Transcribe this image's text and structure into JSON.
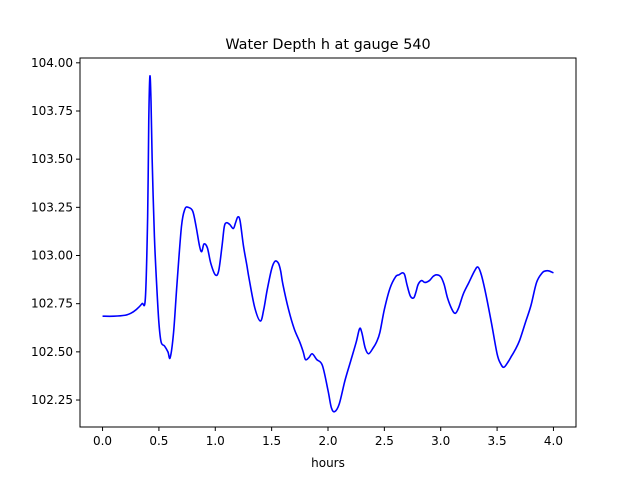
{
  "chart_data": {
    "type": "line",
    "title": "Water Depth h at gauge 540",
    "xlabel": "hours",
    "ylabel": "",
    "xlim": [
      -0.2,
      4.2
    ],
    "ylim": [
      102.11,
      104.025
    ],
    "xticks": [
      0.0,
      0.5,
      1.0,
      1.5,
      2.0,
      2.5,
      3.0,
      3.5,
      4.0
    ],
    "xtick_labels": [
      "0.0",
      "0.5",
      "1.0",
      "1.5",
      "2.0",
      "2.5",
      "3.0",
      "3.5",
      "4.0"
    ],
    "yticks": [
      102.25,
      102.5,
      102.75,
      103.0,
      103.25,
      103.5,
      103.75,
      104.0
    ],
    "ytick_labels": [
      "102.25",
      "102.50",
      "102.75",
      "103.00",
      "103.25",
      "103.50",
      "103.75",
      "104.00"
    ],
    "grid": false,
    "series": [
      {
        "color": "#0000ff",
        "x": [
          0.0,
          0.1,
          0.2,
          0.25,
          0.3,
          0.35,
          0.38,
          0.4,
          0.41,
          0.42,
          0.43,
          0.44,
          0.46,
          0.48,
          0.5,
          0.52,
          0.55,
          0.58,
          0.6,
          0.63,
          0.66,
          0.7,
          0.73,
          0.76,
          0.8,
          0.83,
          0.86,
          0.88,
          0.9,
          0.93,
          0.96,
          1.0,
          1.03,
          1.06,
          1.08,
          1.1,
          1.13,
          1.16,
          1.18,
          1.2,
          1.22,
          1.25,
          1.28,
          1.3,
          1.35,
          1.4,
          1.43,
          1.46,
          1.5,
          1.53,
          1.56,
          1.58,
          1.6,
          1.65,
          1.7,
          1.75,
          1.78,
          1.8,
          1.83,
          1.86,
          1.9,
          1.95,
          2.0,
          2.03,
          2.06,
          2.1,
          2.15,
          2.2,
          2.25,
          2.28,
          2.3,
          2.33,
          2.36,
          2.4,
          2.43,
          2.46,
          2.5,
          2.55,
          2.6,
          2.63,
          2.66,
          2.68,
          2.7,
          2.73,
          2.76,
          2.78,
          2.8,
          2.83,
          2.86,
          2.9,
          2.93,
          2.96,
          3.0,
          3.03,
          3.06,
          3.1,
          3.13,
          3.16,
          3.2,
          3.25,
          3.3,
          3.33,
          3.36,
          3.4,
          3.45,
          3.5,
          3.53,
          3.56,
          3.6,
          3.63,
          3.66,
          3.7,
          3.75,
          3.8,
          3.85,
          3.9,
          3.93,
          3.96,
          4.0
        ],
        "y": [
          102.685,
          102.685,
          102.69,
          102.7,
          102.72,
          102.75,
          102.78,
          103.2,
          103.7,
          103.93,
          103.8,
          103.5,
          103.1,
          102.85,
          102.65,
          102.55,
          102.53,
          102.5,
          102.47,
          102.6,
          102.85,
          103.15,
          103.24,
          103.25,
          103.23,
          103.15,
          103.05,
          103.02,
          103.06,
          103.04,
          102.96,
          102.9,
          102.92,
          103.05,
          103.15,
          103.17,
          103.16,
          103.14,
          103.17,
          103.2,
          103.18,
          103.05,
          102.95,
          102.88,
          102.73,
          102.66,
          102.72,
          102.82,
          102.93,
          102.97,
          102.96,
          102.92,
          102.85,
          102.72,
          102.62,
          102.55,
          102.5,
          102.46,
          102.47,
          102.49,
          102.46,
          102.43,
          102.3,
          102.21,
          102.19,
          102.23,
          102.35,
          102.45,
          102.55,
          102.62,
          102.6,
          102.52,
          102.49,
          102.52,
          102.55,
          102.6,
          102.72,
          102.83,
          102.89,
          102.9,
          102.91,
          102.9,
          102.85,
          102.79,
          102.78,
          102.81,
          102.85,
          102.87,
          102.86,
          102.87,
          102.89,
          102.9,
          102.89,
          102.85,
          102.78,
          102.72,
          102.7,
          102.73,
          102.8,
          102.86,
          102.92,
          102.94,
          102.9,
          102.8,
          102.65,
          102.49,
          102.44,
          102.42,
          102.45,
          102.48,
          102.51,
          102.56,
          102.65,
          102.74,
          102.86,
          102.91,
          102.92,
          102.92,
          102.91
        ]
      }
    ]
  }
}
